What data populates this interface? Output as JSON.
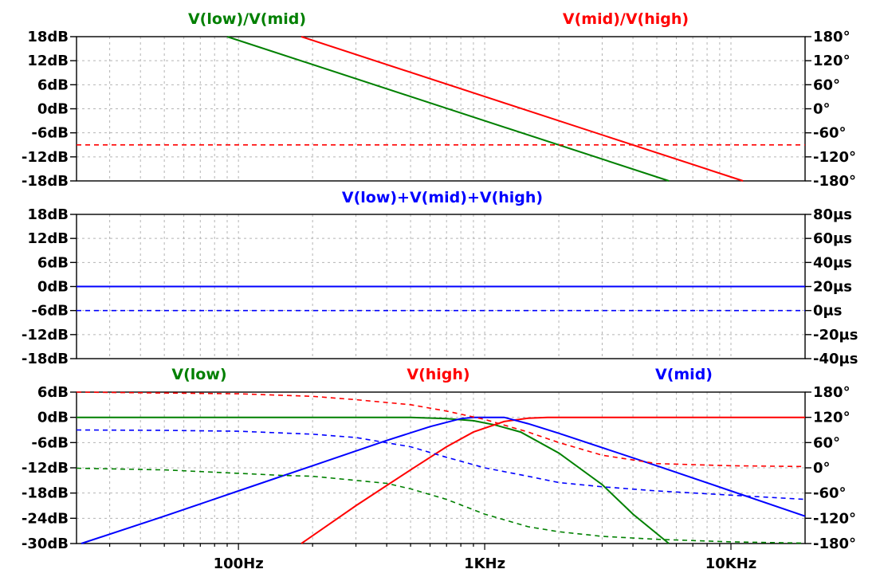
{
  "x_axis": {
    "scale": "log",
    "range_hz": [
      22,
      20000
    ],
    "tick_labels": [
      {
        "value": 100,
        "label": "100Hz"
      },
      {
        "value": 1000,
        "label": "1KHz"
      },
      {
        "value": 10000,
        "label": "10KHz"
      }
    ]
  },
  "colors": {
    "green": "#008000",
    "red": "#ff0000",
    "blue": "#0000ff",
    "grid": "#b4b4b4",
    "frame": "#000000"
  },
  "chart_data": [
    {
      "type": "line",
      "xscale": "log",
      "titles": [
        {
          "text": "V(low)/V(mid)",
          "color": "green"
        },
        {
          "text": "V(mid)/V(high)",
          "color": "red"
        }
      ],
      "left_axis": {
        "ylim": [
          -18,
          18
        ],
        "ticks": [
          "18dB",
          "12dB",
          "6dB",
          "0dB",
          "-6dB",
          "-12dB",
          "-18dB"
        ]
      },
      "right_axis": {
        "ylim": [
          -180,
          180
        ],
        "ticks": [
          "180°",
          "120°",
          "60°",
          "0°",
          "-60°",
          "-120°",
          "-180°"
        ]
      },
      "series": [
        {
          "color": "green",
          "style": "solid",
          "axis": "left",
          "x": [
            90,
            5600
          ],
          "y": [
            18,
            -18
          ]
        },
        {
          "color": "red",
          "style": "solid",
          "axis": "left",
          "x": [
            180,
            11200
          ],
          "y": [
            18,
            -18
          ]
        },
        {
          "color": "red",
          "style": "dashed",
          "axis": "right",
          "x": [
            22,
            20000
          ],
          "y": [
            -90,
            -90
          ]
        }
      ]
    },
    {
      "type": "line",
      "xscale": "log",
      "titles": [
        {
          "text": "V(low)+V(mid)+V(high)",
          "color": "blue"
        }
      ],
      "left_axis": {
        "ylim": [
          -18,
          18
        ],
        "ticks": [
          "18dB",
          "12dB",
          "6dB",
          "0dB",
          "-6dB",
          "-12dB",
          "-18dB"
        ]
      },
      "right_axis": {
        "ylim": [
          -40,
          80
        ],
        "ticks": [
          "80µs",
          "60µs",
          "40µs",
          "20µs",
          "0µs",
          "-20µs",
          "-40µs"
        ]
      },
      "series": [
        {
          "color": "blue",
          "style": "solid",
          "axis": "left",
          "x": [
            22,
            20000
          ],
          "y": [
            0,
            0
          ]
        },
        {
          "color": "blue",
          "style": "dashed",
          "axis": "left",
          "x": [
            22,
            20000
          ],
          "y": [
            -6,
            -6
          ]
        }
      ]
    },
    {
      "type": "line",
      "xscale": "log",
      "titles": [
        {
          "text": "V(low)",
          "color": "green"
        },
        {
          "text": "V(high)",
          "color": "red"
        },
        {
          "text": "V(mid)",
          "color": "blue"
        }
      ],
      "left_axis": {
        "ylim": [
          -30,
          6
        ],
        "ticks": [
          "6dB",
          "0dB",
          "-6dB",
          "-12dB",
          "-18dB",
          "-24dB",
          "-30dB"
        ]
      },
      "right_axis": {
        "ylim": [
          -180,
          180
        ],
        "ticks": [
          "180°",
          "120°",
          "60°",
          "0°",
          "-60°",
          "-120°",
          "-180°"
        ]
      },
      "series": [
        {
          "color": "green",
          "style": "solid",
          "axis": "left",
          "x": [
            22,
            500,
            700,
            900,
            1100,
            1400,
            2000,
            3000,
            4000,
            5600
          ],
          "y": [
            0,
            0,
            -0.3,
            -0.8,
            -1.8,
            -3.5,
            -8.5,
            -16,
            -23,
            -30
          ]
        },
        {
          "color": "red",
          "style": "solid",
          "axis": "left",
          "x": [
            180,
            300,
            500,
            700,
            900,
            1200,
            1500,
            1800,
            2000,
            3000,
            20000
          ],
          "y": [
            -30,
            -21,
            -12.5,
            -7,
            -3.5,
            -1,
            -0.2,
            0,
            0,
            0,
            0
          ]
        },
        {
          "color": "blue",
          "style": "solid",
          "axis": "left",
          "x": [
            23,
            50,
            100,
            200,
            400,
            600,
            800,
            900,
            1000,
            1200,
            1500,
            2000,
            5000,
            10000,
            20000
          ],
          "y": [
            -30,
            -23.5,
            -17.5,
            -11.5,
            -5.5,
            -2.2,
            -0.3,
            0,
            0,
            0,
            -1.5,
            -3.8,
            -11.5,
            -17.5,
            -23.5
          ]
        },
        {
          "color": "red",
          "style": "dashed",
          "axis": "right",
          "x": [
            22,
            100,
            200,
            300,
            500,
            700,
            1000,
            1500,
            2000,
            3000,
            5000,
            10000,
            20000
          ],
          "y": [
            180,
            176,
            170,
            162,
            150,
            135,
            115,
            85,
            60,
            30,
            10,
            5,
            3
          ]
        },
        {
          "color": "blue",
          "style": "dashed",
          "axis": "right",
          "x": [
            22,
            50,
            100,
            200,
            300,
            500,
            700,
            1000,
            1500,
            2000,
            3000,
            5000,
            10000,
            20000
          ],
          "y": [
            90,
            89,
            87,
            80,
            72,
            50,
            25,
            0,
            -20,
            -35,
            -45,
            -55,
            -65,
            -75
          ]
        },
        {
          "color": "green",
          "style": "dashed",
          "axis": "right",
          "x": [
            22,
            50,
            100,
            150,
            200,
            300,
            400,
            500,
            700,
            1000,
            1500,
            2000,
            3000,
            5000,
            10000,
            20000
          ],
          "y": [
            -1,
            -5,
            -13,
            -18,
            -20,
            -30,
            -37,
            -50,
            -75,
            -110,
            -140,
            -152,
            -163,
            -170,
            -176,
            -179
          ]
        }
      ]
    }
  ]
}
